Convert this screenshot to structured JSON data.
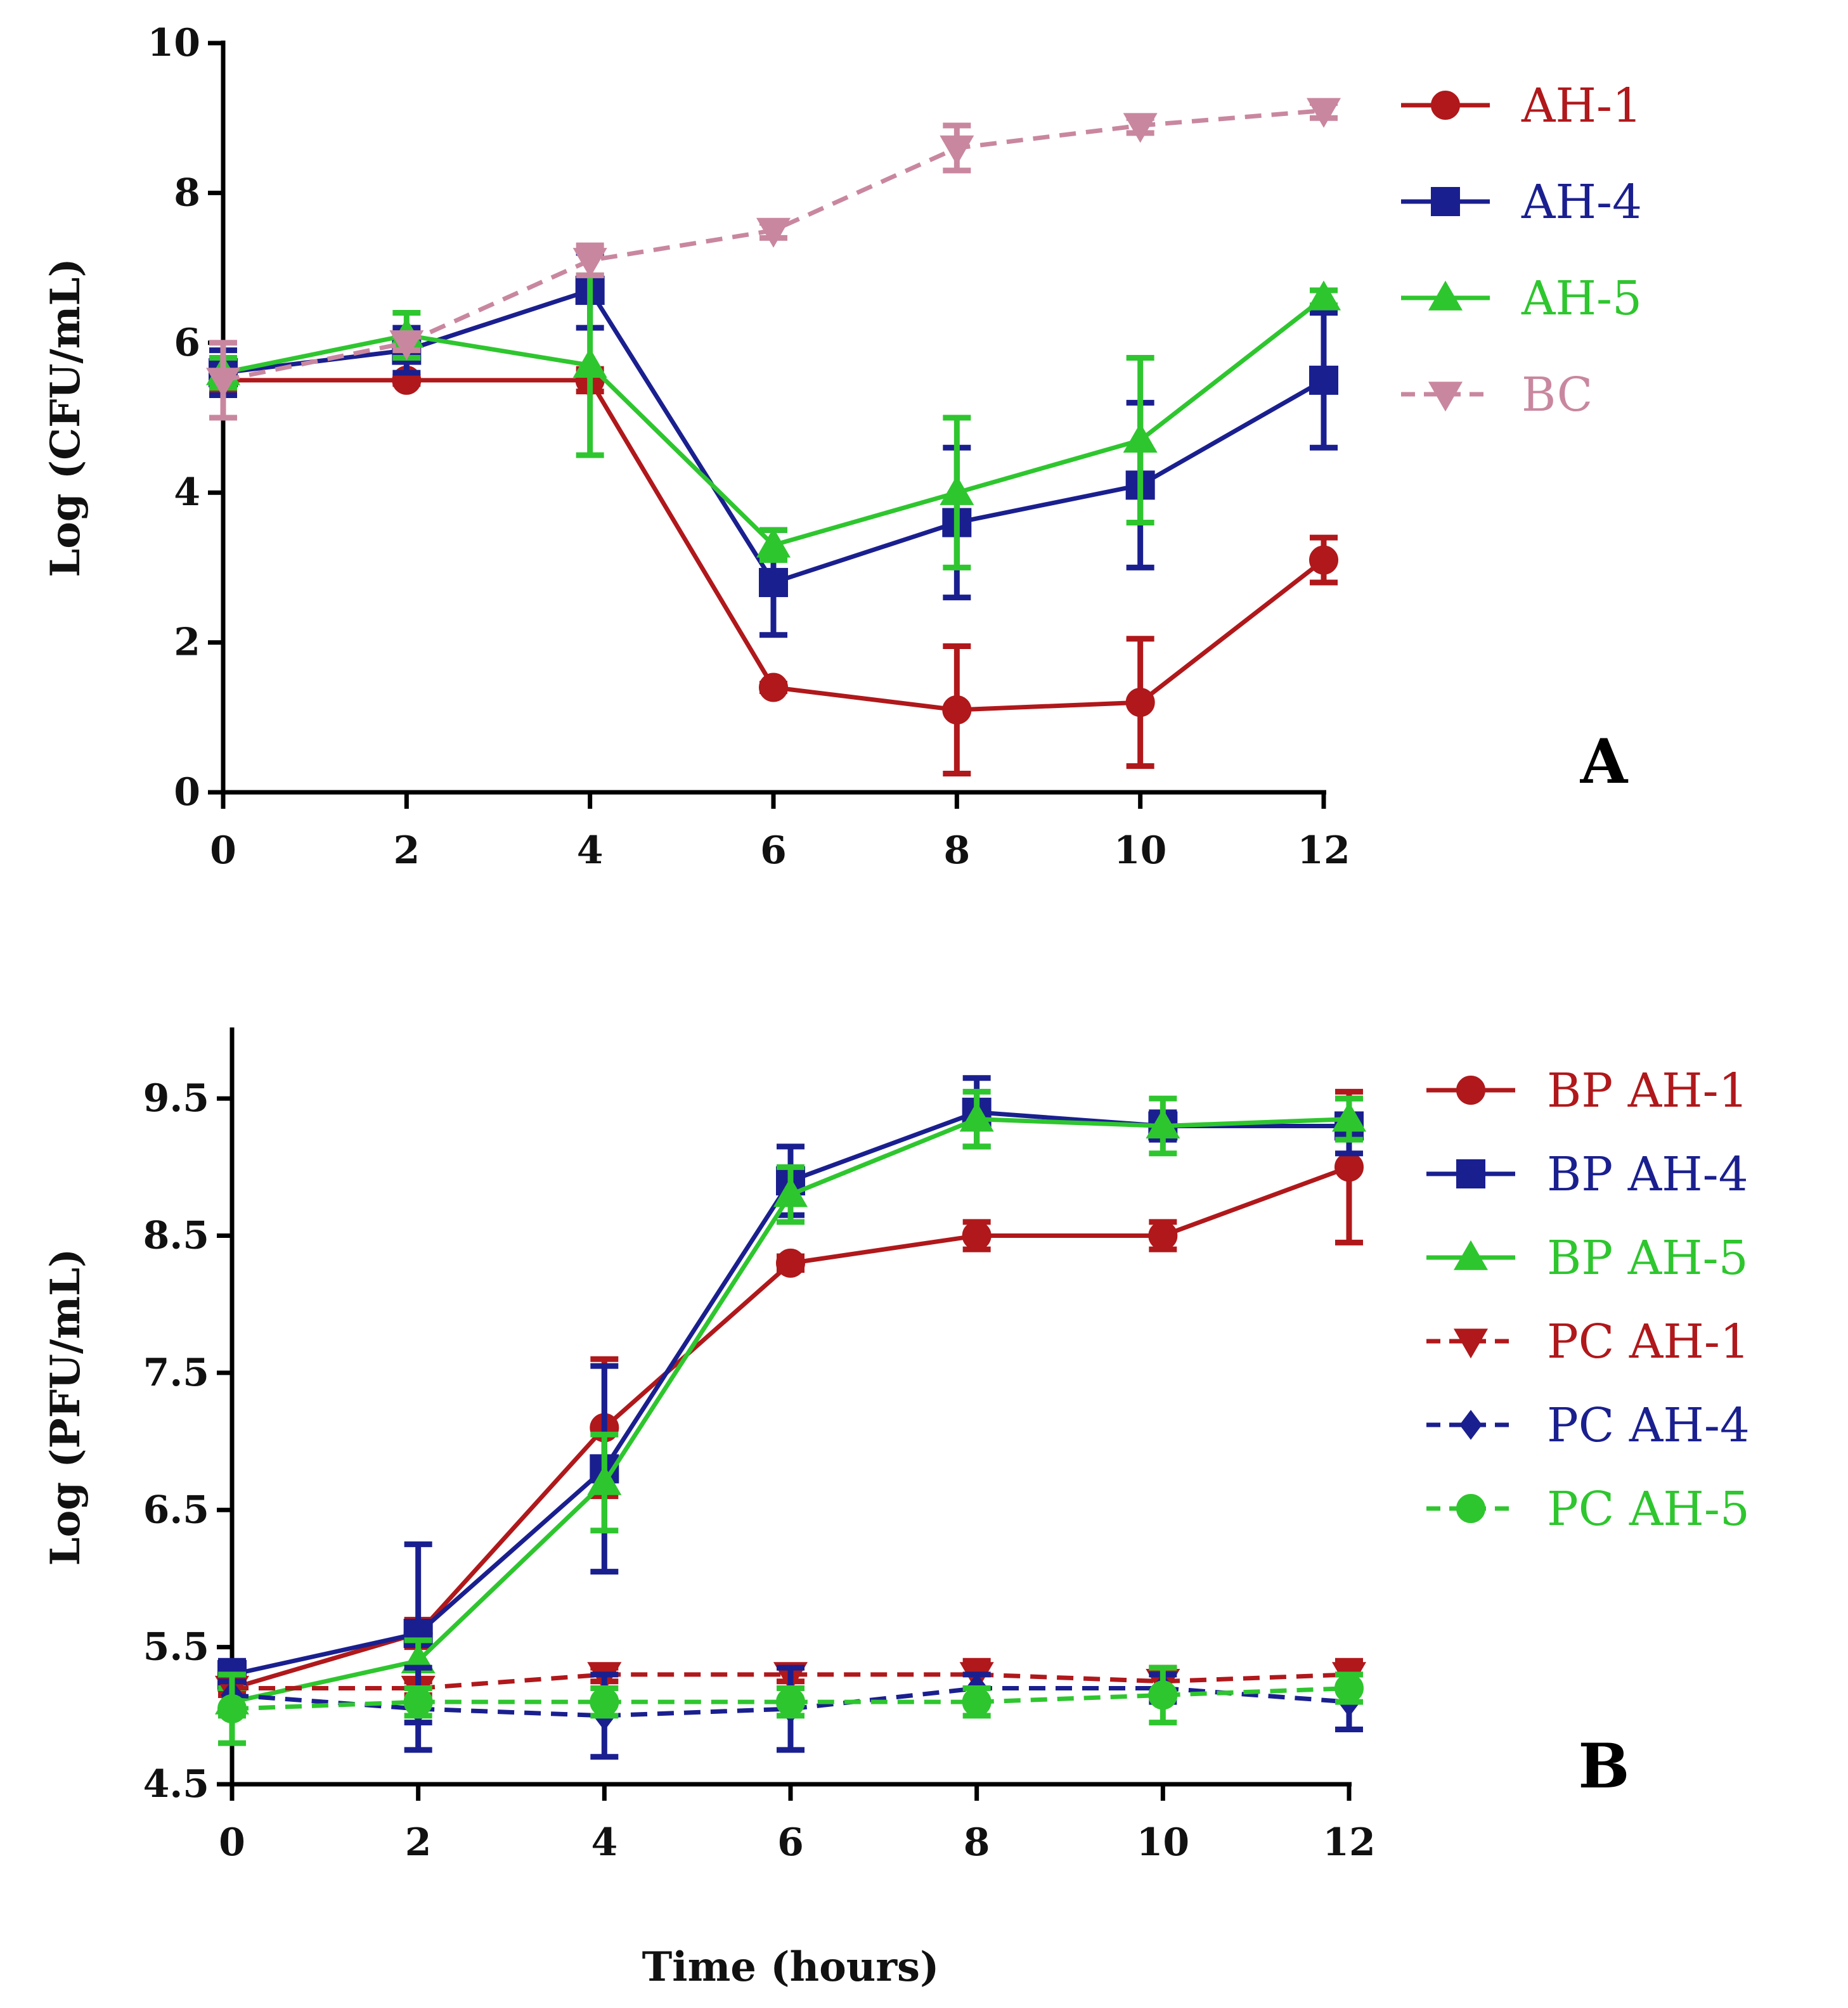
{
  "chart_data": [
    {
      "type": "line",
      "panel_label": "A",
      "xlabel": "",
      "ylabel": "Log (CFU/mL)",
      "x": [
        0,
        2,
        4,
        6,
        8,
        10,
        12
      ],
      "xlim": [
        0,
        12
      ],
      "ylim": [
        0,
        10
      ],
      "xticks": [
        "0",
        "2",
        "4",
        "6",
        "8",
        "10",
        "12"
      ],
      "yticks": [
        "0",
        "2",
        "4",
        "6",
        "8",
        "10"
      ],
      "legend_position": "right",
      "series": [
        {
          "name": "AH-1",
          "color": "#b0181b",
          "marker": "circle",
          "dashed": false,
          "values": [
            5.5,
            5.5,
            5.5,
            1.4,
            1.1,
            1.2,
            3.1
          ],
          "errors": [
            0.15,
            0.05,
            0.15,
            0.05,
            0.85,
            0.85,
            0.3
          ]
        },
        {
          "name": "AH-4",
          "color": "#1a1f8f",
          "marker": "square",
          "dashed": false,
          "values": [
            5.6,
            5.9,
            6.7,
            2.8,
            3.6,
            4.1,
            5.5
          ],
          "errors": [
            0.3,
            0.3,
            0.5,
            0.7,
            1.0,
            1.1,
            0.9
          ]
        },
        {
          "name": "AH-5",
          "color": "#2ec62e",
          "marker": "triangle",
          "dashed": false,
          "values": [
            5.6,
            6.1,
            5.7,
            3.3,
            4.0,
            4.7,
            6.6
          ],
          "errors": [
            0.2,
            0.3,
            1.2,
            0.2,
            1.0,
            1.1,
            0.1
          ]
        },
        {
          "name": "BC",
          "color": "#c9879f",
          "marker": "triangle-down",
          "dashed": true,
          "values": [
            5.5,
            6.0,
            7.1,
            7.5,
            8.6,
            8.9,
            9.1
          ],
          "errors": [
            0.5,
            0.1,
            0.2,
            0.1,
            0.3,
            0.1,
            0.1
          ]
        }
      ]
    },
    {
      "type": "line",
      "panel_label": "B",
      "xlabel": "Time (hours)",
      "ylabel": "Log (PFU/mL)",
      "x": [
        0,
        2,
        4,
        6,
        8,
        10,
        12
      ],
      "xlim": [
        0,
        12
      ],
      "ylim": [
        4.5,
        10
      ],
      "xticks": [
        "0",
        "2",
        "4",
        "6",
        "8",
        "10",
        "12"
      ],
      "yticks": [
        "4.5",
        "5.5",
        "6.5",
        "7.5",
        "8.5",
        "9.5"
      ],
      "legend_position": "right",
      "series": [
        {
          "name": "BP AH-1",
          "color": "#b0181b",
          "marker": "circle",
          "dashed": false,
          "values": [
            5.2,
            5.6,
            7.1,
            8.3,
            8.5,
            8.5,
            9.0
          ],
          "errors": [
            0.05,
            0.1,
            0.5,
            0.05,
            0.1,
            0.1,
            0.55
          ]
        },
        {
          "name": "BP AH-4",
          "color": "#1a1f8f",
          "marker": "square",
          "dashed": false,
          "values": [
            5.3,
            5.6,
            6.8,
            8.9,
            9.4,
            9.3,
            9.3
          ],
          "errors": [
            0.1,
            0.65,
            0.75,
            0.25,
            0.25,
            0.1,
            0.2
          ]
        },
        {
          "name": "BP AH-5",
          "color": "#2ec62e",
          "marker": "triangle",
          "dashed": false,
          "values": [
            5.1,
            5.4,
            6.7,
            8.8,
            9.35,
            9.3,
            9.35
          ],
          "errors": [
            0.1,
            0.15,
            0.35,
            0.2,
            0.2,
            0.2,
            0.15
          ]
        },
        {
          "name": "PC AH-1",
          "color": "#b0181b",
          "marker": "triangle-down",
          "dashed": true,
          "values": [
            5.2,
            5.2,
            5.3,
            5.3,
            5.3,
            5.25,
            5.3
          ],
          "errors": [
            0.05,
            0.05,
            0.05,
            0.05,
            0.1,
            0.1,
            0.1
          ]
        },
        {
          "name": "PC AH-4",
          "color": "#1a1f8f",
          "marker": "diamond",
          "dashed": true,
          "values": [
            5.15,
            5.05,
            5.0,
            5.05,
            5.2,
            5.2,
            5.1
          ],
          "errors": [
            0.1,
            0.3,
            0.3,
            0.3,
            0.1,
            0.1,
            0.2
          ]
        },
        {
          "name": "PC AH-5",
          "color": "#2ec62e",
          "marker": "circle",
          "dashed": true,
          "values": [
            5.05,
            5.1,
            5.1,
            5.1,
            5.1,
            5.15,
            5.2
          ],
          "errors": [
            0.25,
            0.1,
            0.1,
            0.1,
            0.1,
            0.2,
            0.1
          ]
        }
      ]
    }
  ]
}
